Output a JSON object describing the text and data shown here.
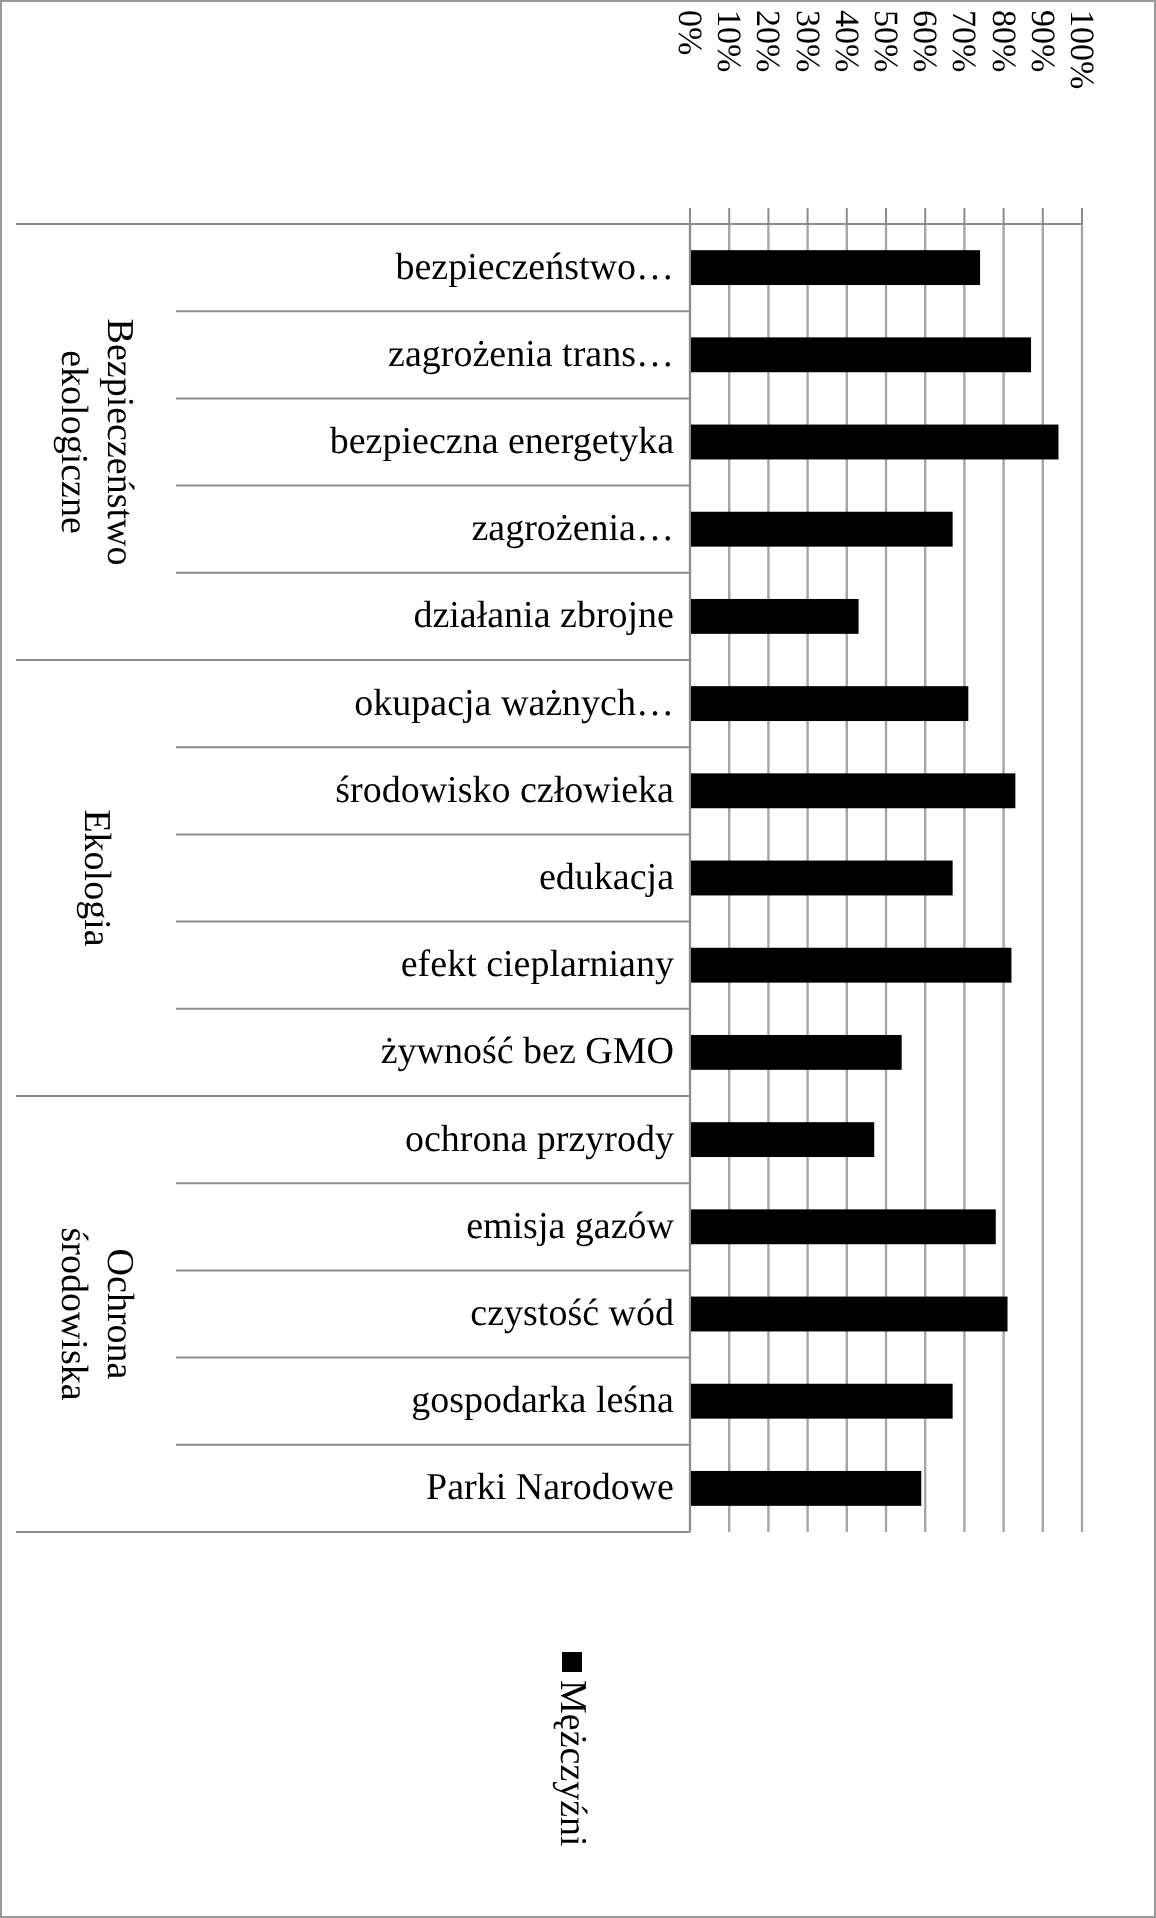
{
  "chart_data": {
    "type": "bar",
    "orientation": "horizontal",
    "categories": [
      "bezpieczeństwo…",
      "zagrożenia trans…",
      "bezpieczna energetyka",
      "zagrożenia…",
      "działania zbrojne",
      "okupacja ważnych…",
      "środowisko człowieka",
      "edukacja",
      "efekt cieplarniany",
      "żywność bez GMO",
      "ochrona przyrody",
      "emisja gazów",
      "czystość wód",
      "gospodarka leśna",
      "Parki Narodowe"
    ],
    "series": [
      {
        "name": "Mężczyźni",
        "color": "#000000",
        "values": [
          74,
          87,
          94,
          67,
          43,
          71,
          83,
          67,
          82,
          54,
          47,
          78,
          81,
          67,
          59
        ]
      }
    ],
    "annotations": [
      "Bezpieczeństwo ekologiczne",
      "Ekologia",
      "Ochrona środowiska"
    ],
    "xlim": [
      0,
      100
    ],
    "xticks": [
      {
        "value": 0,
        "label": "0%"
      },
      {
        "value": 10,
        "label": "10%"
      },
      {
        "value": 20,
        "label": "20%"
      },
      {
        "value": 30,
        "label": "30%"
      },
      {
        "value": 40,
        "label": "40%"
      },
      {
        "value": 50,
        "label": "50%"
      },
      {
        "value": 60,
        "label": "60%"
      },
      {
        "value": 70,
        "label": "70%"
      },
      {
        "value": 80,
        "label": "80%"
      },
      {
        "value": 90,
        "label": "90%"
      },
      {
        "value": 100,
        "label": "100%"
      }
    ],
    "grid": "x",
    "legend": "bottom"
  }
}
